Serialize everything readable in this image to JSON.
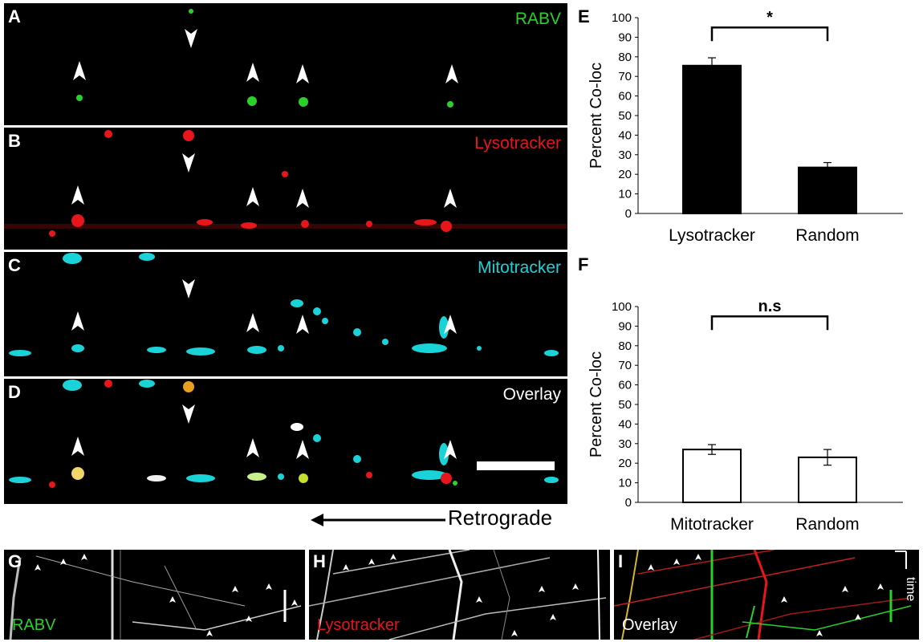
{
  "panels": {
    "A": {
      "letter": "A",
      "channel": "RABV",
      "color": "#2ad12a"
    },
    "B": {
      "letter": "B",
      "channel": "Lysotracker",
      "color": "#e8161b"
    },
    "C": {
      "letter": "C",
      "channel": "Mitotracker",
      "color": "#1ad3d8"
    },
    "D": {
      "letter": "D",
      "channel": "Overlay",
      "color": "#ffffff"
    },
    "G": {
      "letter": "G",
      "channel": "RABV",
      "color": "#2ad12a"
    },
    "H": {
      "letter": "H",
      "channel": "Lysotracker",
      "color": "#e8161b"
    },
    "I": {
      "letter": "I",
      "channel": "Overlay",
      "color": "#ffffff",
      "axis_label": "time"
    }
  },
  "retrograde_label": "Retrograde",
  "chart_data": [
    {
      "panel": "E",
      "type": "bar",
      "categories": [
        "Lysotracker",
        "Random"
      ],
      "values": [
        75.5,
        23.5
      ],
      "errors": [
        4,
        2.5
      ],
      "bar_fill": [
        "#000000",
        "#000000"
      ],
      "ylabel": "Percent Co-loc",
      "ylim": [
        0,
        100
      ],
      "yticks": [
        "0",
        "10",
        "20",
        "30",
        "40",
        "50",
        "60",
        "70",
        "80",
        "90",
        "100"
      ],
      "significance": "*",
      "grid": false
    },
    {
      "panel": "F",
      "type": "bar",
      "categories": [
        "Mitotracker",
        "Random"
      ],
      "values": [
        27,
        23
      ],
      "errors": [
        2.5,
        4
      ],
      "bar_fill": [
        "#ffffff",
        "#ffffff"
      ],
      "ylabel": "Percent Co-loc",
      "ylim": [
        0,
        100
      ],
      "yticks": [
        "0",
        "10",
        "20",
        "30",
        "40",
        "50",
        "60",
        "70",
        "80",
        "90",
        "100"
      ],
      "significance": "n.s",
      "grid": false
    }
  ]
}
